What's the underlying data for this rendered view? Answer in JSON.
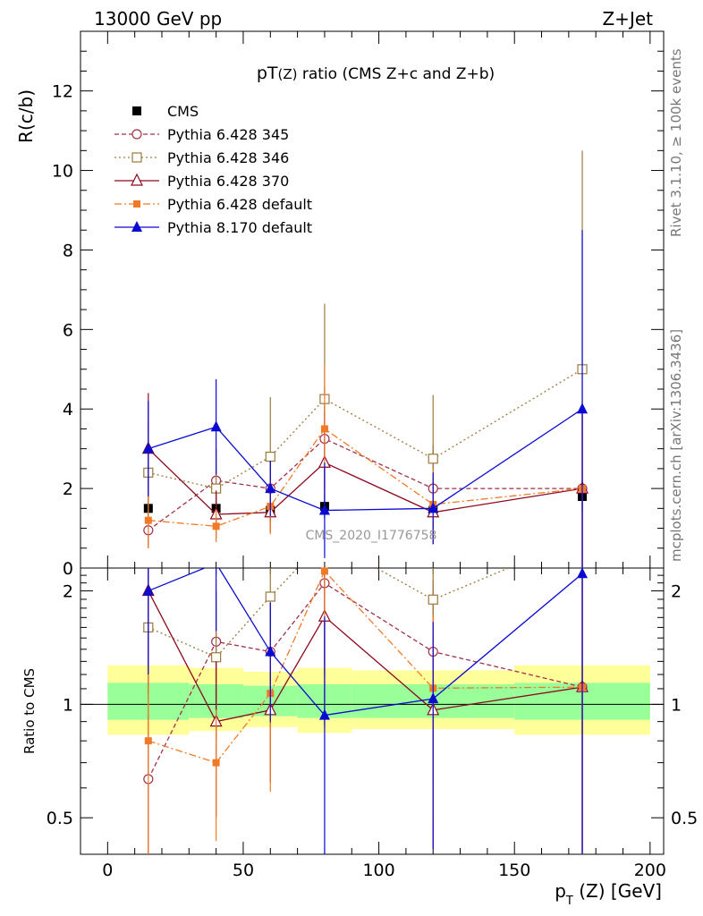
{
  "header": {
    "left": "13000 GeV pp",
    "right": "Z+Jet"
  },
  "side_labels": {
    "rivet": "Rivet 3.1.10, ≥ 100k events",
    "mcplots": "mcplots.cern.ch [arXiv:1306.3436]"
  },
  "watermark": "CMS_2020_I1776758",
  "chart_data": {
    "type": "scatter",
    "title": "pT(Z) ratio (CMS  Z+c and Z+b)",
    "title_main": "pT",
    "title_sub": "(Z)",
    "title_rest": " ratio (CMS  Z+c and Z+b)",
    "ylabel": "R(c/b)",
    "xlabel_p": "p",
    "xlabel_sub": "T",
    "xlabel_rest": " (Z) [GeV]",
    "ratio_ylabel": "Ratio to CMS",
    "xlim": [
      -10,
      205
    ],
    "ylim": [
      0,
      13.5
    ],
    "ratio_ylim": [
      0.4,
      2.3
    ],
    "x_ticks": [
      0,
      50,
      100,
      150,
      200
    ],
    "x_tick_labels": [
      "0",
      "50",
      "100",
      "150",
      "200"
    ],
    "y_ticks": [
      0,
      2,
      4,
      6,
      8,
      10,
      12
    ],
    "y_tick_labels": [
      "0",
      "2",
      "4",
      "6",
      "8",
      "10",
      "12"
    ],
    "ratio_ticks": [
      0.5,
      1,
      2
    ],
    "ratio_tick_labels": [
      "0.5",
      "1",
      "2"
    ],
    "x": [
      15,
      40,
      60,
      80,
      120,
      175
    ],
    "bin_edges": [
      0,
      30,
      50,
      70,
      90,
      150,
      200
    ],
    "band_yellow": [
      [
        0.83,
        1.27
      ],
      [
        0.85,
        1.25
      ],
      [
        0.87,
        1.22
      ],
      [
        0.84,
        1.25
      ],
      [
        0.86,
        1.23
      ],
      [
        0.83,
        1.27
      ]
    ],
    "band_green": [
      [
        0.91,
        1.14
      ],
      [
        0.92,
        1.13
      ],
      [
        0.93,
        1.12
      ],
      [
        0.92,
        1.13
      ],
      [
        0.92,
        1.13
      ],
      [
        0.91,
        1.14
      ]
    ],
    "series": [
      {
        "name": "CMS",
        "color": "#000000",
        "marker": "square-filled",
        "dash": "",
        "values": [
          1.5,
          1.5,
          1.45,
          1.55,
          1.45,
          1.8
        ],
        "errors": [
          0.3,
          0.3,
          0.3,
          0.3,
          0.3,
          0.4
        ]
      },
      {
        "name": "Pythia 6.428 345",
        "color": "#a0324b",
        "marker": "circle-open",
        "dash": "5,3",
        "values": [
          0.95,
          2.2,
          2.0,
          3.25,
          2.0,
          2.0
        ],
        "errors": [
          0.45,
          0.8,
          0.7,
          1.3,
          1.1,
          2.0
        ]
      },
      {
        "name": "Pythia 6.428 346",
        "color": "#9b7a3c",
        "marker": "square-open",
        "dash": "2,3",
        "values": [
          2.4,
          2.0,
          2.8,
          4.25,
          2.75,
          5.0
        ],
        "errors": [
          1.3,
          0.8,
          1.5,
          2.4,
          1.6,
          5.5
        ]
      },
      {
        "name": "Pythia 6.428 370",
        "color": "#8b0a1e",
        "marker": "triangle-open",
        "dash": "",
        "values": [
          3.0,
          1.35,
          1.4,
          2.65,
          1.4,
          2.0
        ],
        "errors": [
          1.4,
          0.6,
          0.5,
          1.3,
          0.8,
          2.0
        ]
      },
      {
        "name": "Pythia 6.428 default",
        "color": "#f07a28",
        "marker": "square-filled-small",
        "dash": "8,3,2,3",
        "values": [
          1.2,
          1.05,
          1.55,
          3.5,
          1.6,
          2.0
        ],
        "errors": [
          0.7,
          0.4,
          0.7,
          1.6,
          0.9,
          2.0
        ]
      },
      {
        "name": "Pythia 8.170 default",
        "color": "#0a0ad2",
        "marker": "triangle-filled",
        "dash": "",
        "values": [
          3.0,
          3.55,
          2.0,
          1.45,
          1.5,
          4.0
        ],
        "errors": [
          1.2,
          1.2,
          0.7,
          1.2,
          0.9,
          4.5
        ]
      }
    ]
  }
}
